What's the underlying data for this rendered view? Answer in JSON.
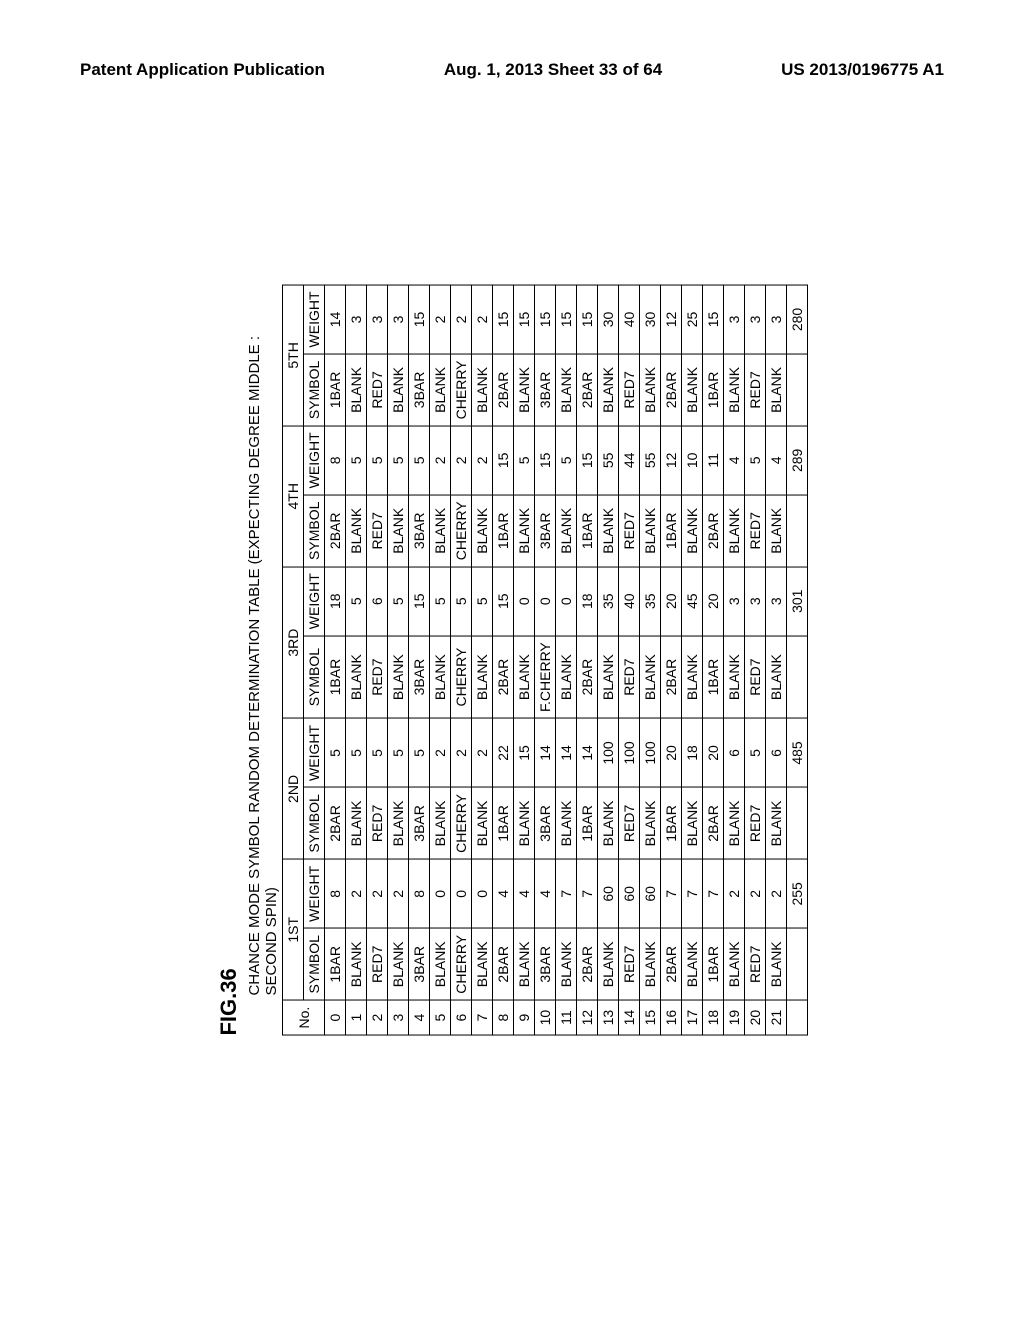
{
  "header": {
    "left": "Patent Application Publication",
    "center": "Aug. 1, 2013  Sheet 33 of 64",
    "right": "US 2013/0196775 A1"
  },
  "figure_label": "FIG.36",
  "table_title": "CHANCE MODE SYMBOL RANDOM DETERMINATION TABLE (EXPECTING DEGREE MIDDLE : SECOND SPIN)",
  "groups": [
    "1ST",
    "2ND",
    "3RD",
    "4TH",
    "5TH"
  ],
  "sub_headers": [
    "No.",
    "SYMBOL",
    "WEIGHT",
    "SYMBOL",
    "WEIGHT",
    "SYMBOL",
    "WEIGHT",
    "SYMBOL",
    "WEIGHT",
    "SYMBOL",
    "WEIGHT"
  ],
  "rows": [
    [
      "0",
      "1BAR",
      "8",
      "2BAR",
      "5",
      "1BAR",
      "18",
      "2BAR",
      "8",
      "1BAR",
      "14"
    ],
    [
      "1",
      "BLANK",
      "2",
      "BLANK",
      "5",
      "BLANK",
      "5",
      "BLANK",
      "5",
      "BLANK",
      "3"
    ],
    [
      "2",
      "RED7",
      "2",
      "RED7",
      "5",
      "RED7",
      "6",
      "RED7",
      "5",
      "RED7",
      "3"
    ],
    [
      "3",
      "BLANK",
      "2",
      "BLANK",
      "5",
      "BLANK",
      "5",
      "BLANK",
      "5",
      "BLANK",
      "3"
    ],
    [
      "4",
      "3BAR",
      "8",
      "3BAR",
      "5",
      "3BAR",
      "15",
      "3BAR",
      "5",
      "3BAR",
      "15"
    ],
    [
      "5",
      "BLANK",
      "0",
      "BLANK",
      "2",
      "BLANK",
      "5",
      "BLANK",
      "2",
      "BLANK",
      "2"
    ],
    [
      "6",
      "CHERRY",
      "0",
      "CHERRY",
      "2",
      "CHERRY",
      "5",
      "CHERRY",
      "2",
      "CHERRY",
      "2"
    ],
    [
      "7",
      "BLANK",
      "0",
      "BLANK",
      "2",
      "BLANK",
      "5",
      "BLANK",
      "2",
      "BLANK",
      "2"
    ],
    [
      "8",
      "2BAR",
      "4",
      "1BAR",
      "22",
      "2BAR",
      "15",
      "1BAR",
      "15",
      "2BAR",
      "15"
    ],
    [
      "9",
      "BLANK",
      "4",
      "BLANK",
      "15",
      "BLANK",
      "0",
      "BLANK",
      "5",
      "BLANK",
      "15"
    ],
    [
      "10",
      "3BAR",
      "4",
      "3BAR",
      "14",
      "F.CHERRY",
      "0",
      "3BAR",
      "15",
      "3BAR",
      "15"
    ],
    [
      "11",
      "BLANK",
      "7",
      "BLANK",
      "14",
      "BLANK",
      "0",
      "BLANK",
      "5",
      "BLANK",
      "15"
    ],
    [
      "12",
      "2BAR",
      "7",
      "1BAR",
      "14",
      "2BAR",
      "18",
      "1BAR",
      "15",
      "2BAR",
      "15"
    ],
    [
      "13",
      "BLANK",
      "60",
      "BLANK",
      "100",
      "BLANK",
      "35",
      "BLANK",
      "55",
      "BLANK",
      "30"
    ],
    [
      "14",
      "RED7",
      "60",
      "RED7",
      "100",
      "RED7",
      "40",
      "RED7",
      "44",
      "RED7",
      "40"
    ],
    [
      "15",
      "BLANK",
      "60",
      "BLANK",
      "100",
      "BLANK",
      "35",
      "BLANK",
      "55",
      "BLANK",
      "30"
    ],
    [
      "16",
      "2BAR",
      "7",
      "1BAR",
      "20",
      "2BAR",
      "20",
      "1BAR",
      "12",
      "2BAR",
      "12"
    ],
    [
      "17",
      "BLANK",
      "7",
      "BLANK",
      "18",
      "BLANK",
      "45",
      "BLANK",
      "10",
      "BLANK",
      "25"
    ],
    [
      "18",
      "1BAR",
      "7",
      "2BAR",
      "20",
      "1BAR",
      "20",
      "2BAR",
      "11",
      "1BAR",
      "15"
    ],
    [
      "19",
      "BLANK",
      "2",
      "BLANK",
      "6",
      "BLANK",
      "3",
      "BLANK",
      "4",
      "BLANK",
      "3"
    ],
    [
      "20",
      "RED7",
      "2",
      "RED7",
      "5",
      "RED7",
      "3",
      "RED7",
      "5",
      "RED7",
      "3"
    ],
    [
      "21",
      "BLANK",
      "2",
      "BLANK",
      "6",
      "BLANK",
      "3",
      "BLANK",
      "4",
      "BLANK",
      "3"
    ]
  ],
  "totals": [
    "",
    "",
    "255",
    "",
    "485",
    "",
    "301",
    "",
    "289",
    "",
    "280"
  ]
}
